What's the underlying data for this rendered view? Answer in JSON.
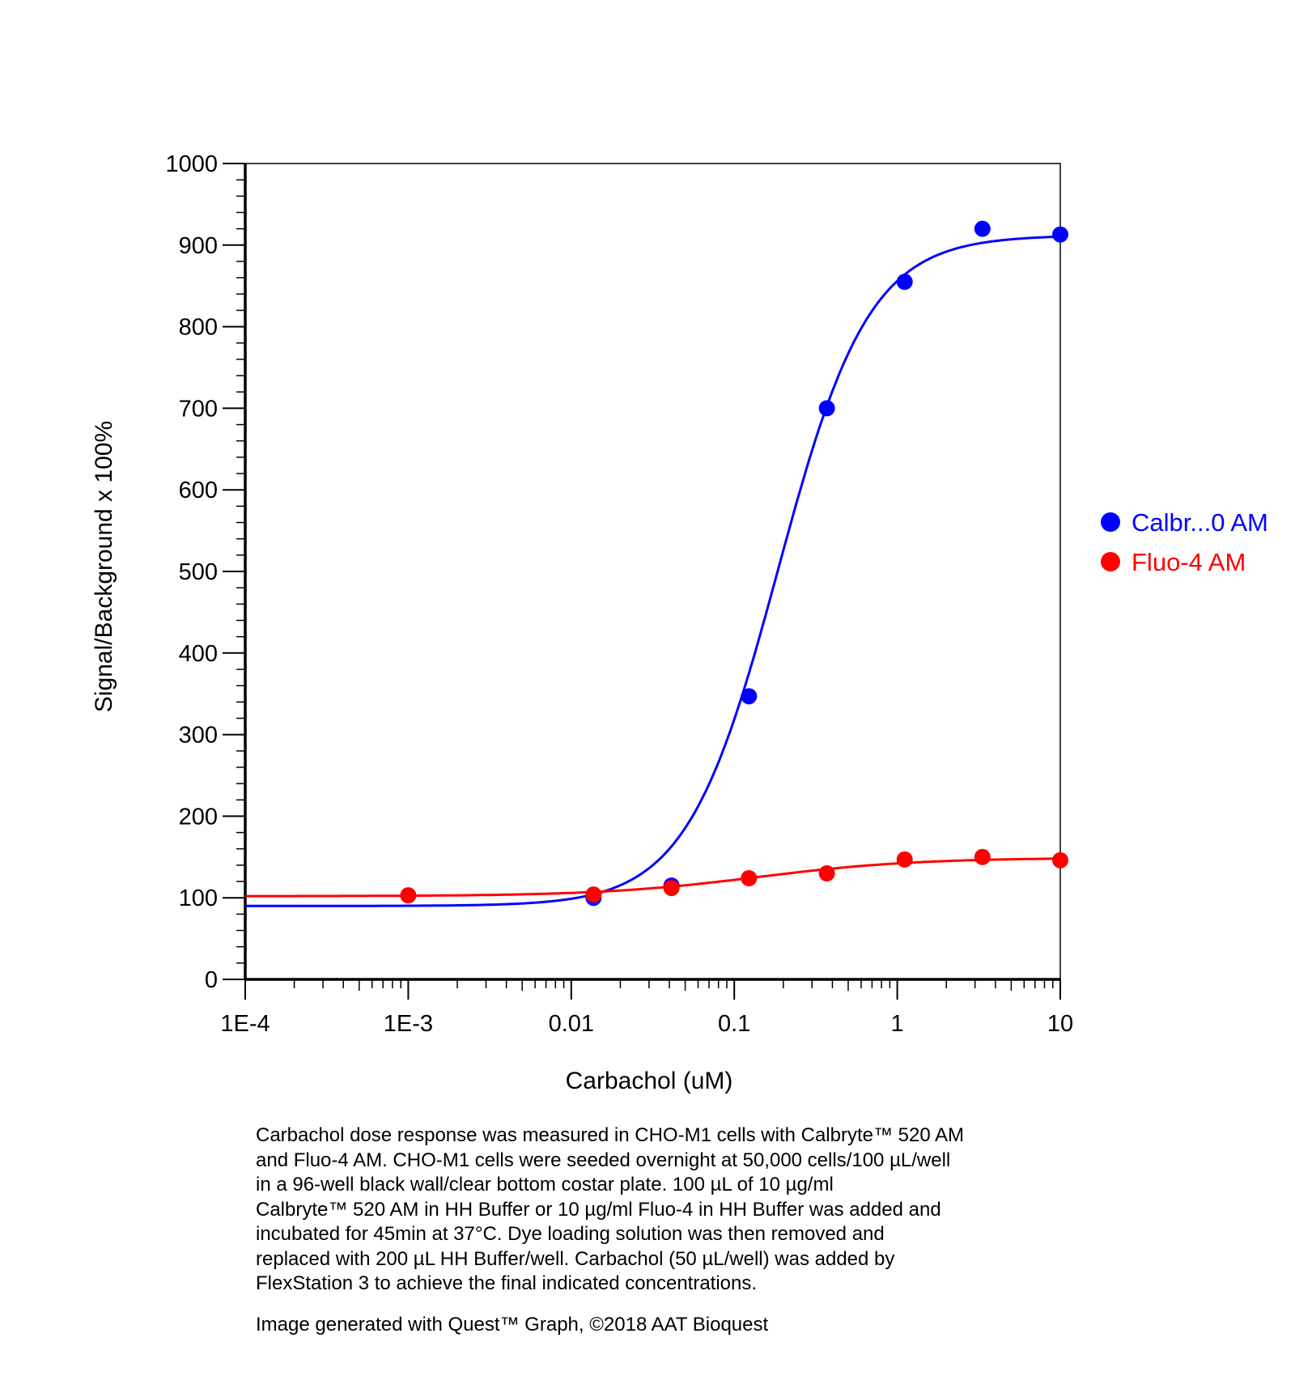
{
  "chart_data": {
    "type": "scatter",
    "xlabel": "Carbachol (uM)",
    "ylabel": "Signal/Background x 100%",
    "x_scale": "log",
    "xlim": [
      0.0001,
      10
    ],
    "ylim": [
      0,
      1000
    ],
    "x_ticks": [
      {
        "value": 0.0001,
        "label": "1E-4"
      },
      {
        "value": 0.001,
        "label": "1E-3"
      },
      {
        "value": 0.01,
        "label": "0.01"
      },
      {
        "value": 0.1,
        "label": "0.1"
      },
      {
        "value": 1,
        "label": "1"
      },
      {
        "value": 10,
        "label": "10"
      }
    ],
    "y_ticks": [
      0,
      100,
      200,
      300,
      400,
      500,
      600,
      700,
      800,
      900,
      1000
    ],
    "grid": false,
    "legend_position": "right",
    "series": [
      {
        "name": "Calbr...0 AM",
        "color": "#0000ff",
        "marker": "circle",
        "x": [
          0.0137,
          0.0412,
          0.123,
          0.37,
          1.11,
          3.33,
          10
        ],
        "y": [
          100,
          115,
          347,
          700,
          855,
          920,
          913
        ]
      },
      {
        "name": "Fluo-4 AM",
        "color": "#ff0000",
        "marker": "circle",
        "x": [
          0.001,
          0.0137,
          0.0412,
          0.123,
          0.37,
          1.11,
          3.33,
          10
        ],
        "y": [
          103,
          104,
          112,
          124,
          130,
          147,
          150,
          146
        ]
      }
    ]
  },
  "caption": {
    "lines": [
      "Carbachol dose response was measured in CHO-M1 cells with Calbryte™ 520 AM",
      "and Fluo-4 AM. CHO-M1 cells were seeded overnight at 50,000 cells/100 µL/well",
      "in a 96-well black wall/clear bottom costar plate. 100 µL of 10 µg/ml",
      "Calbryte™ 520 AM in HH Buffer or 10 µg/ml Fluo-4 in HH Buffer was added and",
      "incubated for 45min at 37°C. Dye loading solution was then removed and",
      "replaced with 200 µL HH Buffer/well. Carbachol (50 µL/well) was added by",
      "FlexStation 3 to achieve the final indicated concentrations."
    ],
    "credit": "Image generated with Quest™ Graph, ©2018 AAT Bioquest"
  }
}
